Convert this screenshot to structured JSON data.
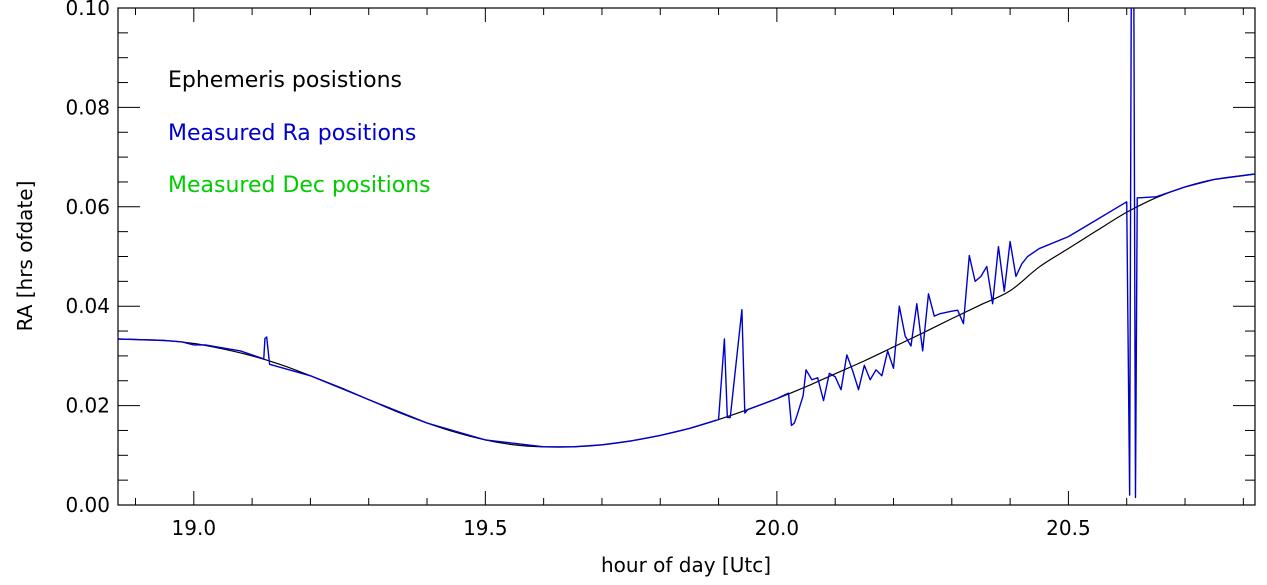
{
  "chart_data": {
    "type": "line",
    "title": "",
    "xlabel": "hour of day [Utc]",
    "ylabel": "RA [hrs ofdate]",
    "xlim": [
      18.87,
      20.82
    ],
    "ylim": [
      0.0,
      0.1
    ],
    "xticks": [
      19.0,
      19.5,
      20.0,
      20.5
    ],
    "xtick_labels": [
      "19.0",
      "19.5",
      "20.0",
      "20.5"
    ],
    "yticks": [
      0.0,
      0.02,
      0.04,
      0.06,
      0.08,
      0.1
    ],
    "ytick_labels": [
      "0.00",
      "0.02",
      "0.04",
      "0.06",
      "0.08",
      "0.10"
    ],
    "grid": false,
    "legend": {
      "placement": "top-left",
      "entries": [
        {
          "label": "Ephemeris posistions",
          "color": "#000000"
        },
        {
          "label": "Measured Ra  positions",
          "color": "#0000cc"
        },
        {
          "label": "Measured Dec positions",
          "color": "#00cc00"
        }
      ]
    },
    "series": [
      {
        "name": "Ephemeris posistions",
        "color": "#000000",
        "x": [
          18.87,
          18.95,
          19.0,
          19.05,
          19.1,
          19.15,
          19.2,
          19.25,
          19.3,
          19.35,
          19.4,
          19.45,
          19.5,
          19.55,
          19.6,
          19.65,
          19.7,
          19.75,
          19.8,
          19.85,
          19.9,
          19.95,
          20.0,
          20.05,
          20.1,
          20.15,
          20.2,
          20.25,
          20.3,
          20.35,
          20.4,
          20.45,
          20.5,
          20.55,
          20.6,
          20.65,
          20.7,
          20.75,
          20.82
        ],
        "y": [
          0.0334,
          0.0331,
          0.0325,
          0.0314,
          0.03,
          0.0282,
          0.026,
          0.0237,
          0.0212,
          0.0187,
          0.0165,
          0.0146,
          0.0131,
          0.0121,
          0.0117,
          0.0117,
          0.0121,
          0.0129,
          0.014,
          0.0154,
          0.0172,
          0.0192,
          0.0214,
          0.0238,
          0.0264,
          0.029,
          0.0318,
          0.0346,
          0.0375,
          0.0403,
          0.0431,
          0.0479,
          0.0516,
          0.0553,
          0.0589,
          0.0618,
          0.064,
          0.0655,
          0.0666
        ]
      },
      {
        "name": "Measured Ra  positions",
        "color": "#0000cc",
        "x": [
          18.87,
          18.95,
          18.98,
          18.99,
          19.0,
          19.01,
          19.02,
          19.03,
          19.05,
          19.06,
          19.07,
          19.08,
          19.1,
          19.11,
          19.12,
          19.122,
          19.125,
          19.13,
          19.2,
          19.3,
          19.4,
          19.5,
          19.6,
          19.65,
          19.7,
          19.75,
          19.8,
          19.85,
          19.9,
          19.91,
          19.915,
          19.92,
          19.94,
          19.945,
          19.95,
          20.0,
          20.02,
          20.025,
          20.03,
          20.035,
          20.045,
          20.05,
          20.06,
          20.07,
          20.08,
          20.09,
          20.1,
          20.11,
          20.12,
          20.13,
          20.14,
          20.15,
          20.16,
          20.17,
          20.18,
          20.19,
          20.2,
          20.21,
          20.22,
          20.23,
          20.24,
          20.25,
          20.26,
          20.27,
          20.28,
          20.3,
          20.31,
          20.32,
          20.33,
          20.34,
          20.35,
          20.36,
          20.37,
          20.38,
          20.39,
          20.4,
          20.41,
          20.42,
          20.43,
          20.45,
          20.5,
          20.55,
          20.6,
          20.605,
          20.608,
          20.612,
          20.615,
          20.618,
          20.62,
          20.65,
          20.7,
          20.75,
          20.82
        ],
        "y": [
          0.0334,
          0.0331,
          0.0328,
          0.0325,
          0.0322,
          0.0322,
          0.0322,
          0.032,
          0.0316,
          0.0314,
          0.0312,
          0.031,
          0.0302,
          0.0298,
          0.0294,
          0.0335,
          0.0338,
          0.0283,
          0.026,
          0.0212,
          0.0165,
          0.0131,
          0.0117,
          0.0117,
          0.0121,
          0.0129,
          0.014,
          0.0154,
          0.0172,
          0.0334,
          0.0176,
          0.0176,
          0.0393,
          0.0185,
          0.0192,
          0.0214,
          0.0225,
          0.016,
          0.0165,
          0.0182,
          0.022,
          0.0272,
          0.0252,
          0.0256,
          0.021,
          0.0265,
          0.0258,
          0.0232,
          0.0302,
          0.027,
          0.0232,
          0.0281,
          0.0252,
          0.0272,
          0.026,
          0.031,
          0.0275,
          0.04,
          0.034,
          0.032,
          0.0405,
          0.031,
          0.0425,
          0.038,
          0.0385,
          0.039,
          0.0392,
          0.0365,
          0.0502,
          0.045,
          0.046,
          0.048,
          0.0405,
          0.052,
          0.043,
          0.053,
          0.046,
          0.0485,
          0.05,
          0.0516,
          0.054,
          0.0575,
          0.061,
          0.002,
          0.11,
          0.11,
          0.0015,
          0.0618,
          0.0618,
          0.062,
          0.064,
          0.0655,
          0.0666
        ]
      }
    ]
  }
}
